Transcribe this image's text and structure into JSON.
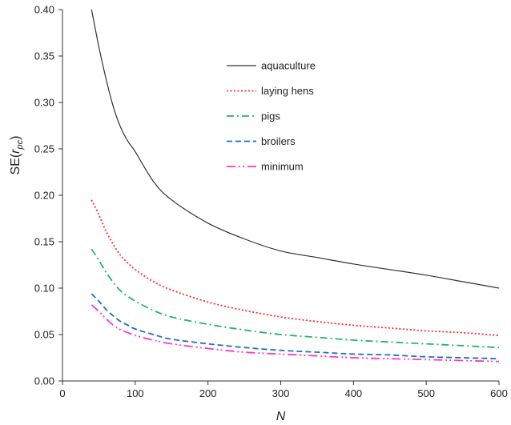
{
  "chart_data": {
    "type": "line",
    "title": "",
    "xlabel": "N",
    "ylabel_prefix": "SE(",
    "ylabel_var": "r",
    "ylabel_sub": "pc",
    "ylabel_suffix": ")",
    "xlim": [
      0,
      600
    ],
    "ylim": [
      0,
      0.4
    ],
    "x_ticks": [
      "0",
      "100",
      "200",
      "300",
      "400",
      "500",
      "600"
    ],
    "y_ticks": [
      "0.00",
      "0.05",
      "0.10",
      "0.15",
      "0.20",
      "0.25",
      "0.30",
      "0.35",
      "0.40"
    ],
    "grid": false,
    "legend_position": "top-center",
    "series": [
      {
        "name": "aquaculture",
        "color": "#333333",
        "dash": "solid",
        "x": [
          40,
          50,
          60,
          70,
          80,
          90,
          100,
          125,
          150,
          200,
          250,
          300,
          350,
          400,
          450,
          500,
          550,
          600
        ],
        "y": [
          0.4,
          0.36,
          0.325,
          0.295,
          0.273,
          0.258,
          0.247,
          0.215,
          0.195,
          0.17,
          0.153,
          0.14,
          0.133,
          0.126,
          0.12,
          0.114,
          0.107,
          0.1
        ]
      },
      {
        "name": "laying hens",
        "color": "#ff2a2a",
        "dash": "dotted",
        "x": [
          40,
          50,
          60,
          70,
          80,
          90,
          100,
          125,
          150,
          200,
          250,
          300,
          350,
          400,
          450,
          500,
          550,
          600
        ],
        "y": [
          0.195,
          0.179,
          0.161,
          0.147,
          0.135,
          0.127,
          0.12,
          0.107,
          0.098,
          0.085,
          0.076,
          0.069,
          0.064,
          0.06,
          0.057,
          0.054,
          0.052,
          0.049
        ]
      },
      {
        "name": "pigs",
        "color": "#1fb46a",
        "dash": "dashdot",
        "x": [
          40,
          50,
          60,
          70,
          80,
          90,
          100,
          125,
          150,
          200,
          250,
          300,
          350,
          400,
          450,
          500,
          550,
          600
        ],
        "y": [
          0.142,
          0.13,
          0.117,
          0.106,
          0.097,
          0.091,
          0.086,
          0.076,
          0.069,
          0.061,
          0.055,
          0.05,
          0.047,
          0.044,
          0.042,
          0.04,
          0.038,
          0.036
        ]
      },
      {
        "name": "broilers",
        "color": "#1f6fc0",
        "dash": "dashed",
        "x": [
          40,
          50,
          60,
          70,
          80,
          90,
          100,
          125,
          150,
          200,
          250,
          300,
          350,
          400,
          450,
          500,
          550,
          600
        ],
        "y": [
          0.094,
          0.086,
          0.077,
          0.07,
          0.064,
          0.06,
          0.056,
          0.05,
          0.045,
          0.04,
          0.036,
          0.033,
          0.031,
          0.029,
          0.028,
          0.026,
          0.025,
          0.024
        ]
      },
      {
        "name": "minimum",
        "color": "#ff33cc",
        "dash": "dashdotdot",
        "x": [
          40,
          50,
          60,
          70,
          80,
          90,
          100,
          125,
          150,
          200,
          250,
          300,
          350,
          400,
          450,
          500,
          550,
          600
        ],
        "y": [
          0.082,
          0.075,
          0.067,
          0.06,
          0.055,
          0.052,
          0.049,
          0.044,
          0.04,
          0.035,
          0.031,
          0.029,
          0.027,
          0.025,
          0.024,
          0.023,
          0.022,
          0.021
        ]
      }
    ]
  }
}
